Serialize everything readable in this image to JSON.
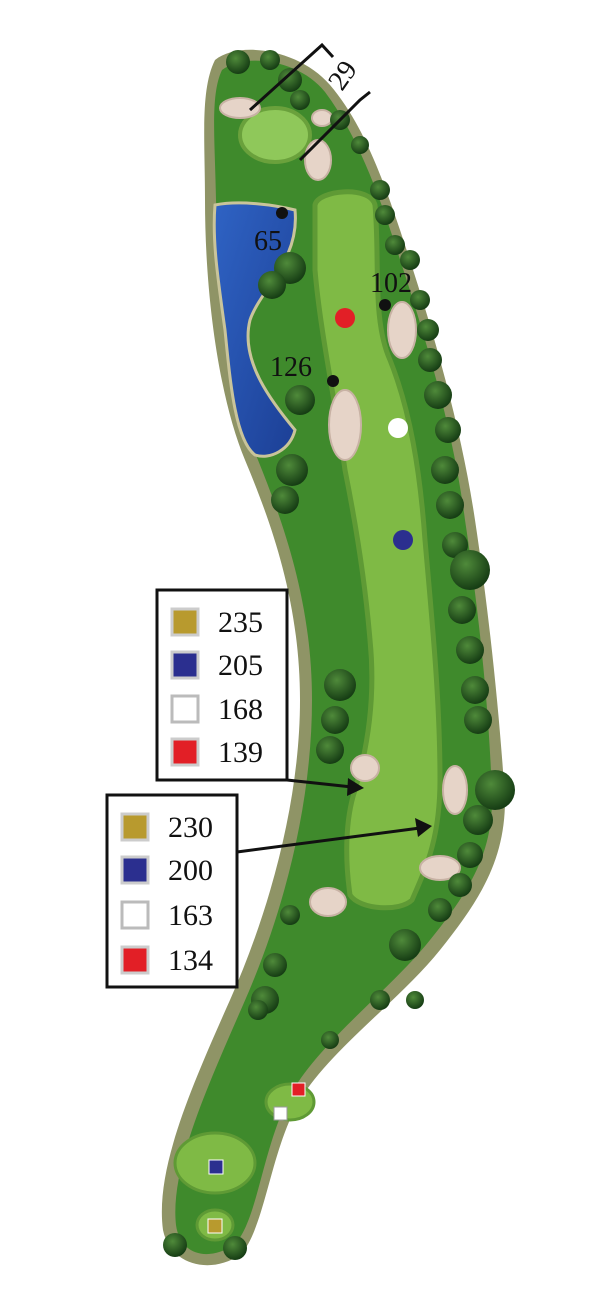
{
  "green_depth": "29",
  "yardage_markers": [
    {
      "label": "65"
    },
    {
      "label": "102"
    },
    {
      "label": "126"
    }
  ],
  "legend_upper": [
    {
      "label": "235"
    },
    {
      "label": "205"
    },
    {
      "label": "168"
    },
    {
      "label": "139"
    }
  ],
  "legend_lower": [
    {
      "label": "230"
    },
    {
      "label": "200"
    },
    {
      "label": "163"
    },
    {
      "label": "134"
    }
  ]
}
